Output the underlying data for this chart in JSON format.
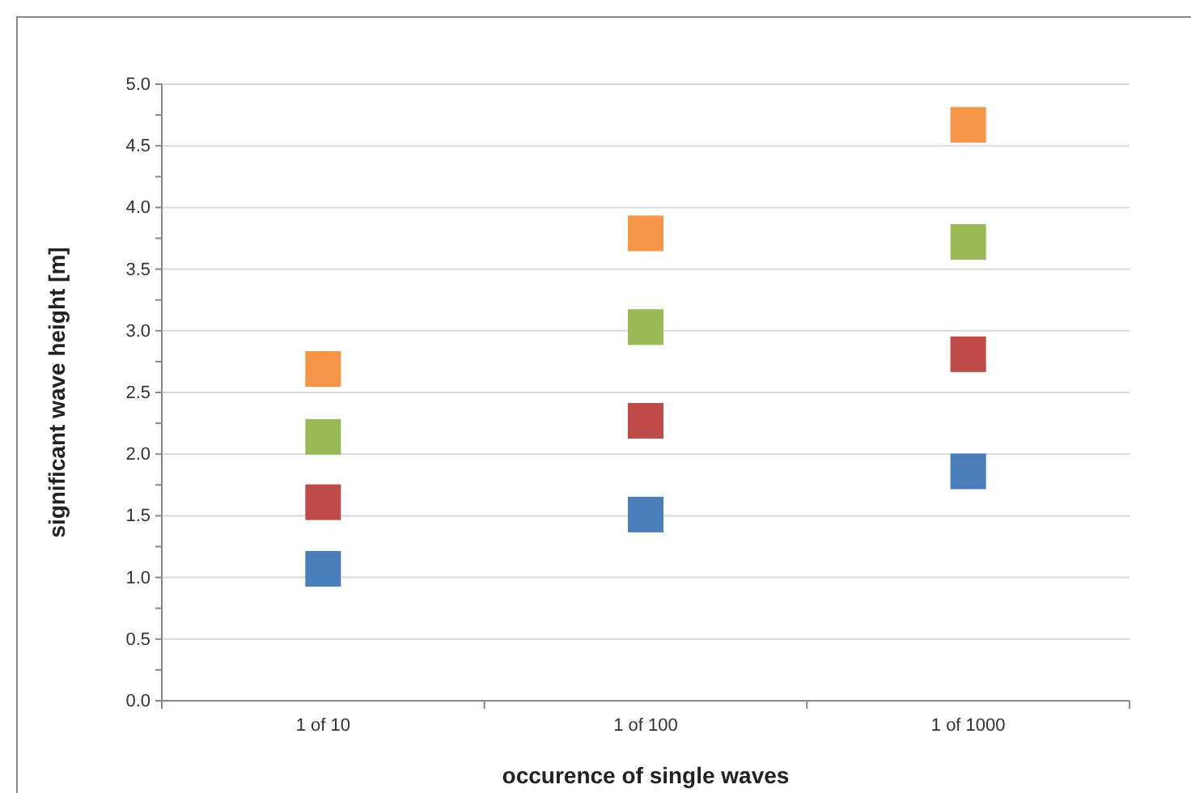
{
  "chart_data": {
    "type": "scatter",
    "xlabel": "occurence of single waves",
    "ylabel": "significant wave height [m]",
    "categories": [
      "1 of 10",
      "1 of 100",
      "1 of 1000"
    ],
    "series": [
      {
        "color": "#4a7ebb",
        "values": [
          1.07,
          1.51,
          1.86
        ]
      },
      {
        "color": "#be4b48",
        "values": [
          1.61,
          2.27,
          2.81
        ]
      },
      {
        "color": "#98b954",
        "values": [
          2.14,
          3.03,
          3.72
        ]
      },
      {
        "color": "#f79646",
        "values": [
          2.69,
          3.79,
          4.67
        ]
      }
    ],
    "ylim": [
      0,
      5
    ],
    "yticks": [
      {
        "value": 0,
        "label": "0.0"
      },
      {
        "value": 0.25,
        "label": null
      },
      {
        "value": 0.5,
        "label": "0.5"
      },
      {
        "value": 0.75,
        "label": null
      },
      {
        "value": 1,
        "label": "1.0"
      },
      {
        "value": 1.25,
        "label": null
      },
      {
        "value": 1.5,
        "label": "1.5"
      },
      {
        "value": 1.75,
        "label": null
      },
      {
        "value": 2,
        "label": "2.0"
      },
      {
        "value": 2.25,
        "label": null
      },
      {
        "value": 2.5,
        "label": "2.5"
      },
      {
        "value": 2.75,
        "label": null
      },
      {
        "value": 3,
        "label": "3.0"
      },
      {
        "value": 3.25,
        "label": null
      },
      {
        "value": 3.5,
        "label": "3.5"
      },
      {
        "value": 3.75,
        "label": null
      },
      {
        "value": 4,
        "label": "4.0"
      },
      {
        "value": 4.25,
        "label": null
      },
      {
        "value": 4.5,
        "label": "4.5"
      },
      {
        "value": 4.75,
        "label": null
      },
      {
        "value": 5,
        "label": "5.0"
      }
    ],
    "grid": "y",
    "marker": "square"
  }
}
